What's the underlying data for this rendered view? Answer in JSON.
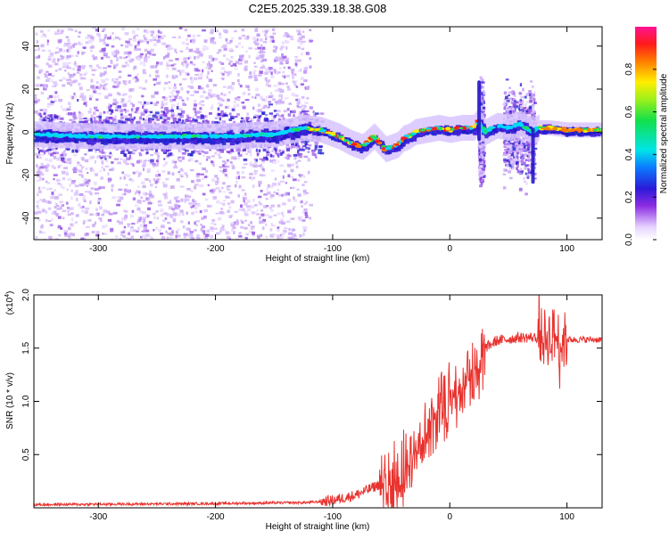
{
  "title": "C2E5.2025.339.18.38.G08",
  "spectrogram": {
    "type": "heatmap",
    "xlabel": "Height of straight line (km)",
    "ylabel": "Frequency (Hz)",
    "xlim": [
      -355,
      130
    ],
    "ylim": [
      -50,
      49
    ],
    "xticks": [
      -300,
      -200,
      -100,
      0,
      100
    ],
    "xtick_labels": [
      "-300",
      "-200",
      "-100",
      "0",
      "100"
    ],
    "yticks": [
      -40,
      -20,
      0,
      20,
      40
    ],
    "ytick_labels": [
      "-40",
      "-20",
      "0",
      "20",
      "40"
    ],
    "colorbar": {
      "label": "Normalized spectral amplitude",
      "range": [
        0,
        1
      ],
      "ticks": [
        0.0,
        0.2,
        0.4,
        0.6,
        0.8
      ],
      "tick_labels": [
        "0.0",
        "0.2",
        "0.4",
        "0.6",
        "0.8"
      ]
    },
    "ridge": {
      "x": [
        -355,
        -300,
        -250,
        -200,
        -150,
        -125,
        -110,
        -95,
        -85,
        -75,
        -65,
        -55,
        -45,
        -40,
        -35,
        -30,
        -20,
        -10,
        0,
        10,
        20,
        24,
        30,
        40,
        50,
        60,
        70,
        75,
        85,
        100,
        130
      ],
      "y": [
        -1,
        -2,
        -2,
        -2,
        -1,
        2,
        1,
        -2,
        -5,
        -7,
        -2,
        -8,
        -6,
        -3,
        -2,
        0,
        1,
        2,
        1,
        2,
        2,
        5,
        0,
        3,
        2,
        4,
        0,
        2,
        2,
        1,
        1
      ]
    }
  },
  "snr": {
    "type": "line",
    "xlabel": "Height of straight line (km)",
    "ylabel": "SNR (10 * v/v)",
    "scale_label": "(x10",
    "scale_exp": "4",
    "scale_close": ")",
    "xlim": [
      -355,
      130
    ],
    "ylim": [
      0,
      2.0
    ],
    "xticks": [
      -300,
      -200,
      -100,
      0,
      100
    ],
    "xtick_labels": [
      "-300",
      "-200",
      "-100",
      "0",
      "100"
    ],
    "yticks": [
      0.5,
      1.0,
      1.5,
      2.0
    ],
    "ytick_labels": [
      "0.5",
      "1.0",
      "1.5",
      "2.0"
    ],
    "color": "#e8322e",
    "envelope": {
      "x": [
        -355,
        -200,
        -120,
        -100,
        -80,
        -60,
        -50,
        -40,
        -30,
        -20,
        -10,
        0,
        10,
        20,
        30,
        40,
        60,
        80,
        90,
        95,
        100,
        130
      ],
      "y": [
        0.03,
        0.04,
        0.05,
        0.07,
        0.12,
        0.22,
        0.32,
        0.45,
        0.65,
        0.82,
        0.98,
        1.1,
        1.25,
        1.35,
        1.5,
        1.57,
        1.6,
        1.6,
        1.62,
        1.55,
        1.58,
        1.58
      ]
    }
  }
}
